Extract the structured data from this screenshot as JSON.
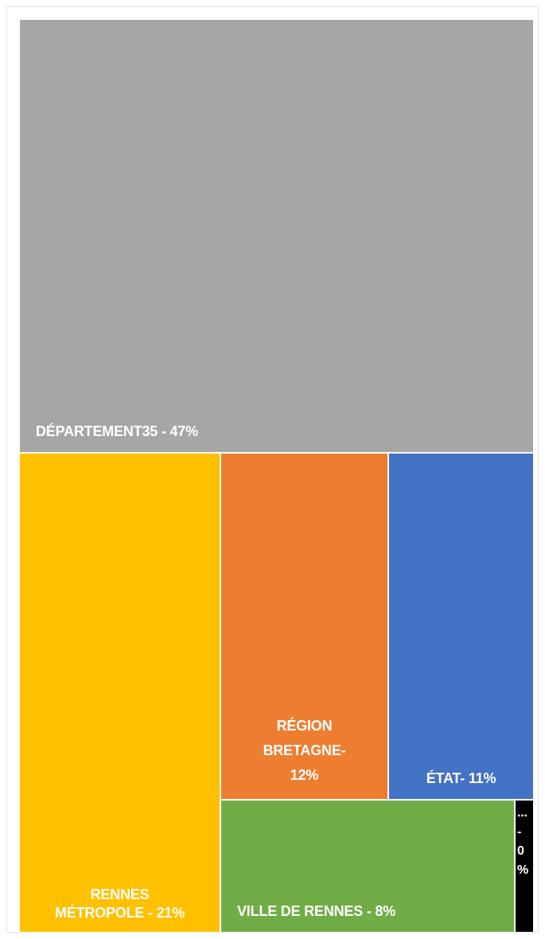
{
  "chart_data": {
    "type": "treemap",
    "title": "",
    "items": [
      {
        "name": "DÉPARTEMENT35",
        "label": "DÉPARTEMENT35 - 47%",
        "percent": 47,
        "color": "#a6a6a6"
      },
      {
        "name": "RENNES MÉTROPOLE",
        "label": "RENNES\nMÉTROPOLE - 21%",
        "percent": 21,
        "color": "#ffc000"
      },
      {
        "name": "RÉGION BRETAGNE",
        "label": "RÉGION\nBRETAGNE-\n12%",
        "percent": 12,
        "color": "#ed7d31"
      },
      {
        "name": "ÉTAT",
        "label": "ÉTAT- 11%",
        "percent": 11,
        "color": "#4472c4"
      },
      {
        "name": "VILLE DE RENNES",
        "label": "VILLE DE RENNES - 8%",
        "percent": 8,
        "color": "#70ad47"
      },
      {
        "name": "...",
        "label": "...\n-\n0\n%",
        "percent": 0,
        "color": "#000000"
      }
    ]
  }
}
